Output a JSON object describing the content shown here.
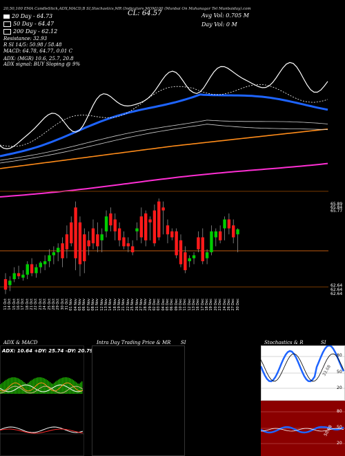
{
  "header": {
    "line1": "20,50,100  EMA  CandleStick,ADX,MACD,B     SI,Stochastics,MR     (Indicators MOM100                          (Munbai On Mahanagar Tel Munbaiday).com",
    "cl_label": "CL: 64.57",
    "avg_vol": "Avg Vol: 0.705  M",
    "day_vol": "Day Vol: 0   M"
  },
  "legend": {
    "items": [
      {
        "label": "20  Day  - 64.73",
        "color": "#ffffff"
      },
      {
        "label": "50  Day  - 64.47",
        "color": "#1e64ff"
      },
      {
        "label": "200  Day  - 62.12",
        "color": "#ff2fd4"
      }
    ],
    "lines": [
      "Resistance: 32.93",
      "R     SI 14/5: 50.98  / 58.48",
      "MACD: 64.78,  64.77,  0.01 C",
      "",
      "ADX:                                (MGR) 10.6,  25.7,  20.8",
      "ADX  signal:                         BUY Sloping @ 9%"
    ]
  },
  "price_axis": {
    "upper": [
      "65.89",
      "65.84",
      "65.77"
    ],
    "lower": [
      "62.64",
      "62.64",
      "62.64"
    ]
  },
  "chart_data": {
    "type": "candlestick",
    "dates": [
      "11 Oct",
      "14 Oct",
      "15 Oct",
      "16 Oct",
      "17 Oct",
      "18 Oct",
      "21 Oct",
      "22 Oct",
      "23 Oct",
      "24 Oct",
      "25 Oct",
      "28 Oct",
      "29 Oct",
      "30 Oct",
      "31 Oct",
      "01 Nov",
      "04 Nov",
      "05 Nov",
      "06 Nov",
      "07 Nov",
      "08 Nov",
      "11 Nov",
      "12 Nov",
      "13 Nov",
      "14 Nov",
      "18 Nov",
      "19 Nov",
      "21 Nov",
      "22 Nov",
      "25 Nov",
      "26 Nov",
      "27 Nov",
      "28 Nov",
      "29 Nov",
      "02 Dec",
      "03 Dec",
      "04 Dec",
      "05 Dec",
      "06 Dec",
      "09 Dec",
      "10 Dec",
      "11 Dec",
      "12 Dec",
      "13 Dec",
      "16 Dec",
      "17 Dec",
      "18 Dec",
      "19 Dec",
      "20 Dec",
      "23 Dec",
      "24 Dec",
      "26 Dec",
      "27 Dec",
      "30 Dec"
    ],
    "candles": [
      {
        "o": 62.9,
        "h": 63.1,
        "l": 62.4,
        "c": 62.55
      },
      {
        "o": 62.7,
        "h": 63.0,
        "l": 62.5,
        "c": 62.85
      },
      {
        "o": 62.9,
        "h": 63.3,
        "l": 62.8,
        "c": 63.1
      },
      {
        "o": 63.1,
        "h": 63.35,
        "l": 62.9,
        "c": 63.0
      },
      {
        "o": 62.95,
        "h": 63.2,
        "l": 62.85,
        "c": 63.05
      },
      {
        "o": 63.05,
        "h": 63.5,
        "l": 62.9,
        "c": 63.4
      },
      {
        "o": 63.4,
        "h": 63.6,
        "l": 63.0,
        "c": 63.1
      },
      {
        "o": 63.1,
        "h": 63.4,
        "l": 62.95,
        "c": 63.3
      },
      {
        "o": 63.3,
        "h": 63.5,
        "l": 63.1,
        "c": 63.45
      },
      {
        "o": 63.4,
        "h": 63.7,
        "l": 63.2,
        "c": 63.5
      },
      {
        "o": 63.5,
        "h": 63.9,
        "l": 63.3,
        "c": 63.7
      },
      {
        "o": 63.7,
        "h": 64.0,
        "l": 63.4,
        "c": 63.8
      },
      {
        "o": 63.8,
        "h": 64.1,
        "l": 63.5,
        "c": 63.95
      },
      {
        "o": 64.1,
        "h": 64.3,
        "l": 63.3,
        "c": 63.6
      },
      {
        "o": 64.4,
        "h": 64.7,
        "l": 63.6,
        "c": 63.9
      },
      {
        "o": 64.8,
        "h": 65.0,
        "l": 64.0,
        "c": 64.1
      },
      {
        "o": 65.3,
        "h": 65.5,
        "l": 63.2,
        "c": 63.6
      },
      {
        "o": 64.8,
        "h": 65.0,
        "l": 63.0,
        "c": 63.4
      },
      {
        "o": 64.4,
        "h": 64.6,
        "l": 63.1,
        "c": 63.5
      },
      {
        "o": 64.2,
        "h": 64.5,
        "l": 63.7,
        "c": 64.0
      },
      {
        "o": 64.6,
        "h": 64.9,
        "l": 63.9,
        "c": 64.1
      },
      {
        "o": 64.4,
        "h": 64.8,
        "l": 63.8,
        "c": 64.0
      },
      {
        "o": 64.2,
        "h": 64.6,
        "l": 63.8,
        "c": 64.4
      },
      {
        "o": 64.5,
        "h": 65.2,
        "l": 64.3,
        "c": 65.0
      },
      {
        "o": 65.1,
        "h": 65.3,
        "l": 64.5,
        "c": 64.7
      },
      {
        "o": 64.9,
        "h": 65.1,
        "l": 64.2,
        "c": 64.5
      },
      {
        "o": 64.6,
        "h": 64.8,
        "l": 64.0,
        "c": 64.2
      },
      {
        "o": 64.3,
        "h": 64.5,
        "l": 63.9,
        "c": 64.0
      },
      {
        "o": 64.1,
        "h": 64.3,
        "l": 63.8,
        "c": 64.0
      },
      {
        "o": 64.0,
        "h": 64.2,
        "l": 63.7,
        "c": 63.8
      },
      {
        "o": 64.5,
        "h": 64.8,
        "l": 64.2,
        "c": 64.6
      },
      {
        "o": 65.0,
        "h": 65.3,
        "l": 64.1,
        "c": 64.3
      },
      {
        "o": 65.1,
        "h": 65.2,
        "l": 64.0,
        "c": 64.2
      },
      {
        "o": 64.9,
        "h": 65.0,
        "l": 64.2,
        "c": 64.8
      },
      {
        "o": 65.2,
        "h": 65.4,
        "l": 64.0,
        "c": 64.1
      },
      {
        "o": 65.5,
        "h": 65.6,
        "l": 64.2,
        "c": 64.3
      },
      {
        "o": 65.3,
        "h": 65.5,
        "l": 64.4,
        "c": 65.2
      },
      {
        "o": 64.7,
        "h": 64.9,
        "l": 64.1,
        "c": 64.4
      },
      {
        "o": 64.5,
        "h": 64.6,
        "l": 64.2,
        "c": 64.3
      },
      {
        "o": 64.5,
        "h": 64.6,
        "l": 63.6,
        "c": 63.7
      },
      {
        "o": 64.2,
        "h": 64.4,
        "l": 63.3,
        "c": 63.4
      },
      {
        "o": 63.8,
        "h": 64.0,
        "l": 63.1,
        "c": 63.2
      },
      {
        "o": 63.5,
        "h": 63.7,
        "l": 63.3,
        "c": 63.6
      },
      {
        "o": 63.6,
        "h": 63.8,
        "l": 63.4,
        "c": 63.7
      },
      {
        "o": 64.3,
        "h": 64.5,
        "l": 63.8,
        "c": 63.9
      },
      {
        "o": 64.3,
        "h": 64.6,
        "l": 63.4,
        "c": 63.5
      },
      {
        "o": 63.6,
        "h": 63.9,
        "l": 63.4,
        "c": 63.8
      },
      {
        "o": 63.8,
        "h": 64.7,
        "l": 63.7,
        "c": 64.5
      },
      {
        "o": 64.3,
        "h": 64.6,
        "l": 64.0,
        "c": 64.5
      },
      {
        "o": 64.5,
        "h": 64.7,
        "l": 64.1,
        "c": 64.2
      },
      {
        "o": 64.6,
        "h": 65.0,
        "l": 64.2,
        "c": 64.9
      },
      {
        "o": 64.9,
        "h": 65.1,
        "l": 64.4,
        "c": 64.6
      },
      {
        "o": 64.7,
        "h": 64.9,
        "l": 64.1,
        "c": 64.3
      },
      {
        "o": 64.4,
        "h": 64.6,
        "l": 63.8,
        "c": 64.57
      }
    ],
    "ylim": [
      62.3,
      66.0
    ],
    "reference_lines": [
      {
        "value": 65.84,
        "color": "#7a3a00"
      },
      {
        "value": 63.85,
        "color": "#c05a10"
      },
      {
        "value": 62.64,
        "color": "#7a3a00"
      }
    ]
  },
  "panels": {
    "adx_title": "ADX  & MACD",
    "adx_values": "ADX: 10.64  +DY: 25.74  -DY: 20.79",
    "intra_title": "Intra  Day  Trading  Price  &  MR",
    "intra_si": "SI",
    "stoch_title": "Stochastics  & R",
    "stoch_si": "SI",
    "stoch_levels": [
      "80",
      "50",
      "20"
    ],
    "stoch_reading": "33.68",
    "rsi_levels": [
      "80",
      "50",
      "20"
    ],
    "rsi_reading": "50.98"
  },
  "colors": {
    "up": "#00cc00",
    "down": "#ff1a1a",
    "ema20": "#ffffff",
    "ema50": "#1e64ff",
    "ema100": "#ff8c1a",
    "ema200": "#ff2fd4",
    "rsi_bg": "#8b0000"
  }
}
